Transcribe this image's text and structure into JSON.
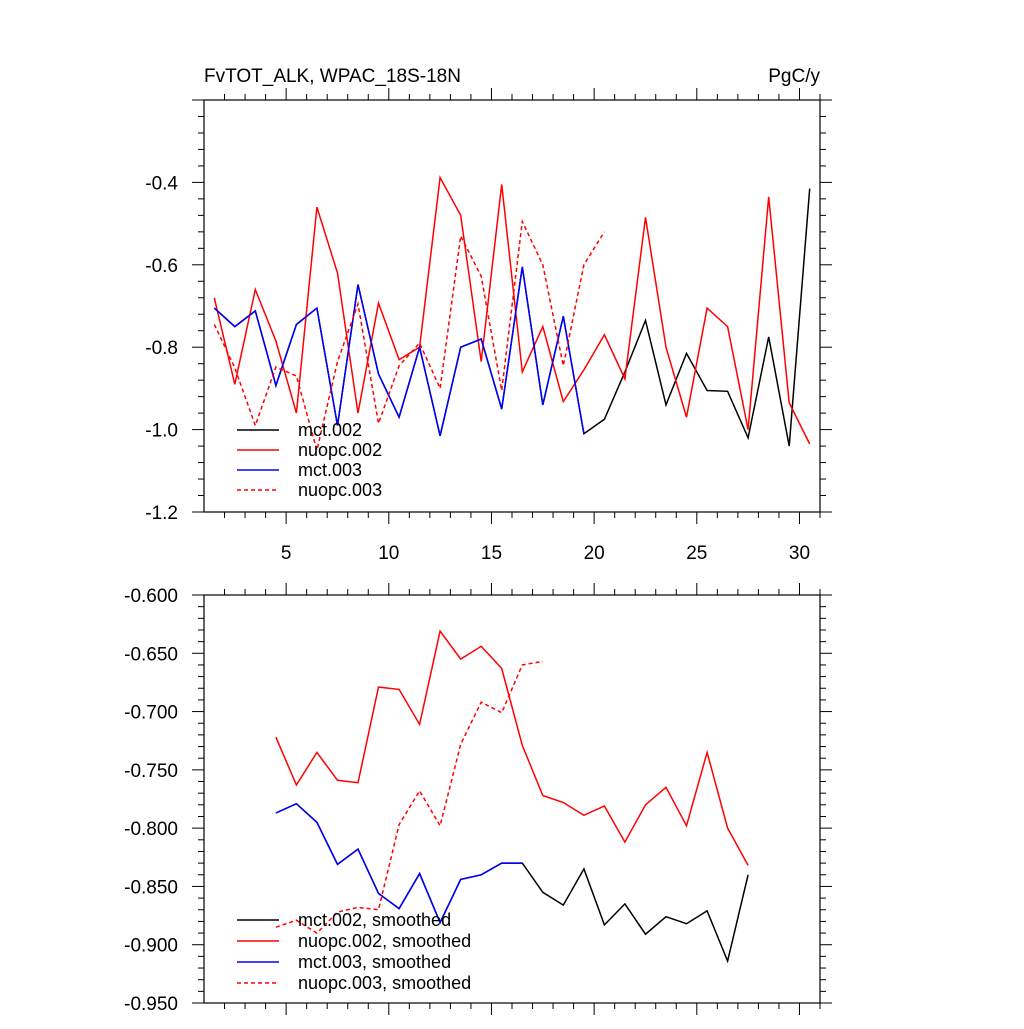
{
  "chart_data": [
    {
      "type": "line",
      "title": "FvTOT_ALK, WPAC_18S-18N",
      "units": "PgC/y",
      "xlim": [
        1,
        31
      ],
      "ylim": [
        -1.2,
        -0.2
      ],
      "xticks": [
        5,
        10,
        15,
        20,
        25,
        30
      ],
      "yticks": [
        -1.2,
        -1.0,
        -0.8,
        -0.6,
        -0.4
      ],
      "ytick_labels": [
        "-1.2",
        "-1.0",
        "-0.8",
        "-0.6",
        "-0.4"
      ],
      "legend_position": "lower-left",
      "series": [
        {
          "name": "mct.002",
          "color": "#000000",
          "dash": "solid",
          "x": [
            1.5,
            2.5,
            3.5,
            4.5,
            5.5,
            6.5,
            7.5,
            8.5,
            9.5,
            10.5,
            11.5,
            12.5,
            13.5,
            14.5,
            15.5,
            16.5,
            17.5,
            18.5,
            19.5,
            20.5,
            21.5,
            22.5,
            23.5,
            24.5,
            25.5,
            26.5,
            27.5,
            28.5,
            29.5,
            30.5
          ],
          "values": [
            -0.705,
            -0.75,
            -0.712,
            -0.893,
            -0.745,
            -0.705,
            -0.99,
            -0.648,
            -0.865,
            -0.97,
            -0.8,
            -1.015,
            -0.8,
            -0.78,
            -0.95,
            -0.605,
            -0.94,
            -0.725,
            -1.01,
            -0.975,
            -0.86,
            -0.735,
            -0.94,
            -0.815,
            -0.905,
            -0.907,
            -1.02,
            -0.775,
            -1.04,
            -0.415
          ]
        },
        {
          "name": "nuopc.002",
          "color": "#ff0000",
          "dash": "solid",
          "x": [
            1.5,
            2.5,
            3.5,
            4.5,
            5.5,
            6.5,
            7.5,
            8.5,
            9.5,
            10.5,
            11.5,
            12.5,
            13.5,
            14.5,
            15.5,
            16.5,
            17.5,
            18.5,
            19.5,
            20.5,
            21.5,
            22.5,
            23.5,
            24.5,
            25.5,
            26.5,
            27.5,
            28.5,
            29.5,
            30.5
          ],
          "values": [
            -0.68,
            -0.89,
            -0.66,
            -0.785,
            -0.96,
            -0.46,
            -0.62,
            -0.96,
            -0.693,
            -0.83,
            -0.8,
            -0.388,
            -0.48,
            -0.835,
            -0.405,
            -0.86,
            -0.75,
            -0.932,
            -0.855,
            -0.77,
            -0.877,
            -0.485,
            -0.8,
            -0.97,
            -0.705,
            -0.75,
            -1.0,
            -0.435,
            -0.935,
            -1.035
          ]
        },
        {
          "name": "mct.003",
          "color": "#0000ff",
          "dash": "solid",
          "x": [
            1.5,
            2.5,
            3.5,
            4.5,
            5.5,
            6.5,
            7.5,
            8.5,
            9.5,
            10.5,
            11.5,
            12.5,
            13.5,
            14.5,
            15.5,
            16.5,
            17.5,
            18.5,
            19.5
          ],
          "values": [
            -0.705,
            -0.75,
            -0.712,
            -0.893,
            -0.745,
            -0.705,
            -0.99,
            -0.648,
            -0.865,
            -0.97,
            -0.8,
            -1.015,
            -0.8,
            -0.78,
            -0.95,
            -0.605,
            -0.94,
            -0.725,
            -1.01
          ]
        },
        {
          "name": "nuopc.003",
          "color": "#ff0000",
          "dash": "dashed",
          "x": [
            1.5,
            2.5,
            3.5,
            4.5,
            5.5,
            6.5,
            7.5,
            8.5,
            9.5,
            10.5,
            11.5,
            12.5,
            13.5,
            14.5,
            15.5,
            16.5,
            17.5,
            18.5,
            19.5,
            20.5
          ],
          "values": [
            -0.745,
            -0.85,
            -0.99,
            -0.848,
            -0.87,
            -1.05,
            -0.835,
            -0.695,
            -0.985,
            -0.845,
            -0.79,
            -0.9,
            -0.53,
            -0.628,
            -0.905,
            -0.495,
            -0.6,
            -0.845,
            -0.6,
            -0.52
          ]
        }
      ]
    },
    {
      "type": "line",
      "title": "",
      "units": "",
      "xlim": [
        1,
        31
      ],
      "ylim": [
        -0.95,
        -0.6
      ],
      "xticks": [
        5,
        10,
        15,
        20,
        25,
        30
      ],
      "yticks": [
        -0.95,
        -0.9,
        -0.85,
        -0.8,
        -0.75,
        -0.7,
        -0.65,
        -0.6
      ],
      "ytick_labels": [
        "-0.950",
        "-0.900",
        "-0.850",
        "-0.800",
        "-0.750",
        "-0.700",
        "-0.650",
        "-0.600"
      ],
      "legend_position": "lower-left",
      "series": [
        {
          "name": "mct.002, smoothed",
          "color": "#000000",
          "dash": "solid",
          "x": [
            4.5,
            5.5,
            6.5,
            7.5,
            8.5,
            9.5,
            10.5,
            11.5,
            12.5,
            13.5,
            14.5,
            15.5,
            16.5,
            17.5,
            18.5,
            19.5,
            20.5,
            21.5,
            22.5,
            23.5,
            24.5,
            25.5,
            26.5,
            27.5
          ],
          "values": [
            -0.787,
            -0.779,
            -0.795,
            -0.831,
            -0.818,
            -0.856,
            -0.869,
            -0.839,
            -0.881,
            -0.844,
            -0.84,
            -0.83,
            -0.83,
            -0.855,
            -0.866,
            -0.835,
            -0.883,
            -0.865,
            -0.891,
            -0.876,
            -0.882,
            -0.871,
            -0.914,
            -0.84
          ]
        },
        {
          "name": "nuopc.002, smoothed",
          "color": "#ff0000",
          "dash": "solid",
          "x": [
            4.5,
            5.5,
            6.5,
            7.5,
            8.5,
            9.5,
            10.5,
            11.5,
            12.5,
            13.5,
            14.5,
            15.5,
            16.5,
            17.5,
            18.5,
            19.5,
            20.5,
            21.5,
            22.5,
            23.5,
            24.5,
            25.5,
            26.5,
            27.5
          ],
          "values": [
            -0.722,
            -0.763,
            -0.735,
            -0.759,
            -0.761,
            -0.679,
            -0.681,
            -0.711,
            -0.631,
            -0.655,
            -0.644,
            -0.663,
            -0.729,
            -0.772,
            -0.778,
            -0.789,
            -0.781,
            -0.812,
            -0.78,
            -0.765,
            -0.798,
            -0.735,
            -0.8,
            -0.832
          ]
        },
        {
          "name": "mct.003, smoothed",
          "color": "#0000ff",
          "dash": "solid",
          "x": [
            4.5,
            5.5,
            6.5,
            7.5,
            8.5,
            9.5,
            10.5,
            11.5,
            12.5,
            13.5,
            14.5,
            15.5,
            16.5
          ],
          "values": [
            -0.787,
            -0.779,
            -0.795,
            -0.831,
            -0.818,
            -0.856,
            -0.869,
            -0.839,
            -0.881,
            -0.844,
            -0.84,
            -0.83,
            -0.83
          ]
        },
        {
          "name": "nuopc.003, smoothed",
          "color": "#ff0000",
          "dash": "dashed",
          "x": [
            4.5,
            5.5,
            6.5,
            7.5,
            8.5,
            9.5,
            10.5,
            11.5,
            12.5,
            13.5,
            14.5,
            15.5,
            16.5,
            17.5
          ],
          "values": [
            -0.885,
            -0.879,
            -0.89,
            -0.872,
            -0.868,
            -0.87,
            -0.797,
            -0.768,
            -0.798,
            -0.728,
            -0.692,
            -0.701,
            -0.66,
            -0.657
          ]
        }
      ]
    }
  ]
}
